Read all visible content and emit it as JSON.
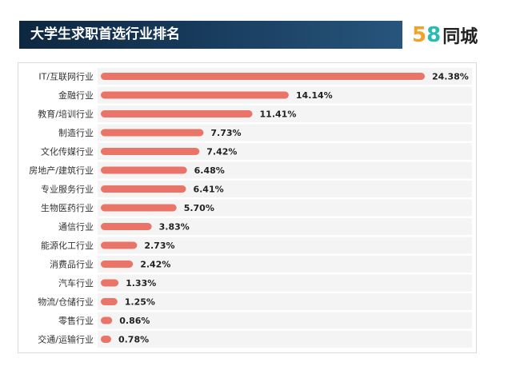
{
  "header": {
    "title": "大学生求职首选行业排名"
  },
  "logo": {
    "number_part1": "5",
    "number_part2": "8",
    "text": "同城",
    "colors": {
      "five": "#f3a229",
      "eight": "#2bbcb1"
    }
  },
  "colors": {
    "bar": "#ea7467",
    "header_bg": "#173a5b",
    "row_bg": "#f4f4f4"
  },
  "chart_data": {
    "type": "bar",
    "orientation": "horizontal",
    "title": "大学生求职首选行业排名",
    "categories": [
      "IT/互联网行业",
      "金融行业",
      "教育/培训行业",
      "制造行业",
      "文化传媒行业",
      "房地产/建筑行业",
      "专业服务行业",
      "生物医药行业",
      "通信行业",
      "能源化工行业",
      "消费品行业",
      "汽车行业",
      "物流/仓储行业",
      "零售行业",
      "交通/运输行业"
    ],
    "values": [
      24.38,
      14.14,
      11.41,
      7.73,
      7.42,
      6.48,
      6.41,
      5.7,
      3.83,
      2.73,
      2.42,
      1.33,
      1.25,
      0.86,
      0.78
    ],
    "value_labels": [
      "24.38%",
      "14.14%",
      "11.41%",
      "7.73%",
      "7.42%",
      "6.48%",
      "6.41%",
      "5.70%",
      "3.83%",
      "2.73%",
      "2.42%",
      "1.33%",
      "1.25%",
      "0.86%",
      "0.78%"
    ],
    "unit": "%",
    "xlim": [
      0,
      24.38
    ],
    "grid": false
  }
}
